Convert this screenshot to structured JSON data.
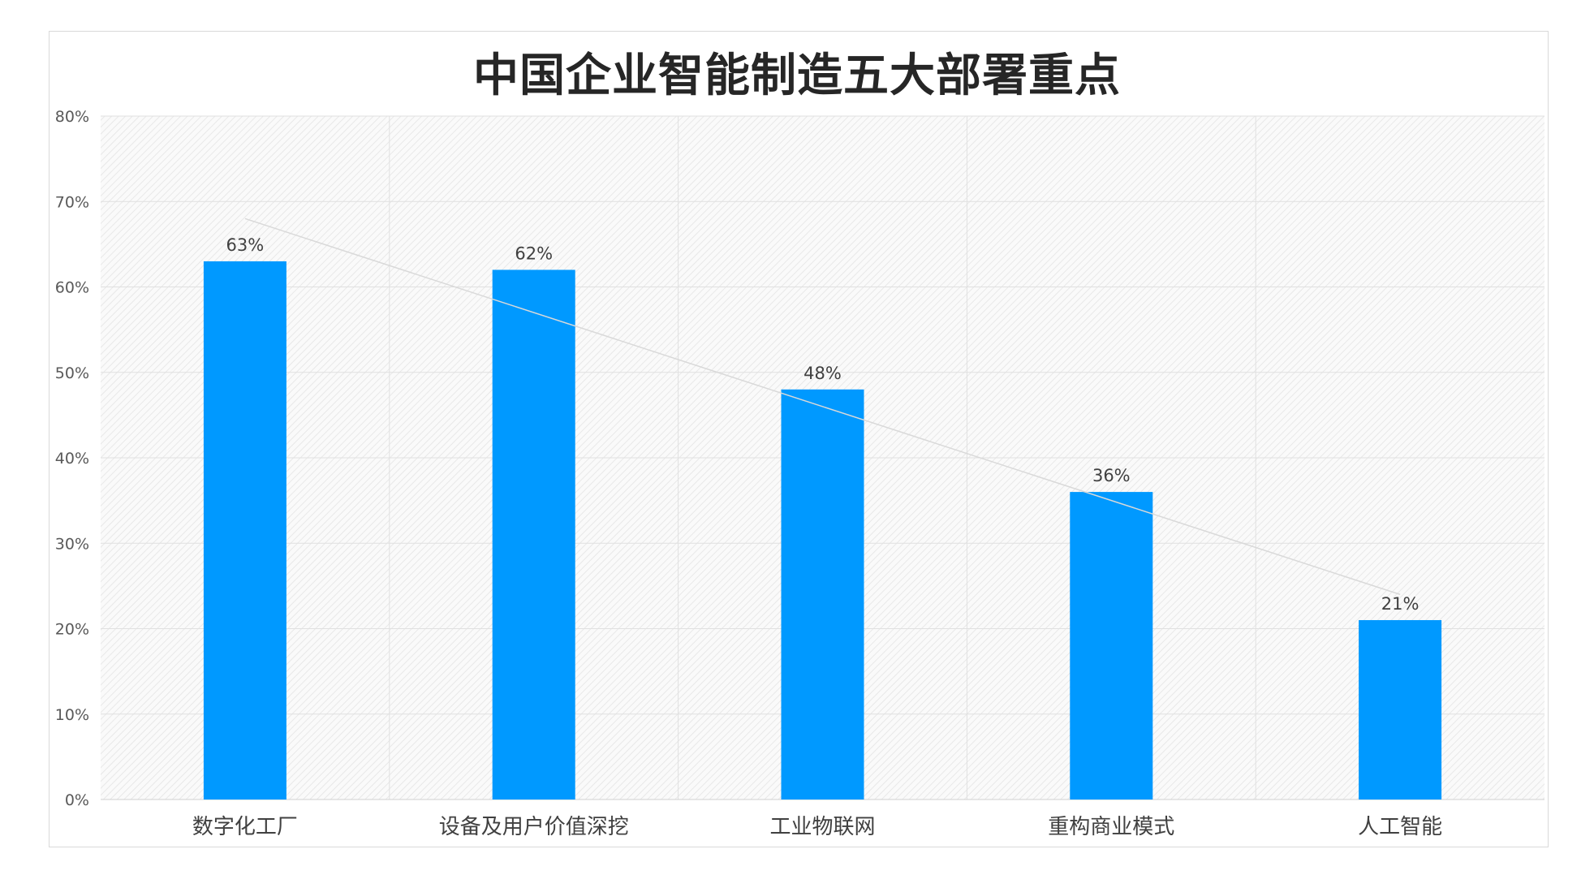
{
  "chart_data": {
    "type": "bar",
    "title": "中国企业智能制造五大部署重点",
    "categories": [
      "数字化工厂",
      "设备及用户价值深挖",
      "工业物联网",
      "重构商业模式",
      "人工智能"
    ],
    "values": [
      63,
      62,
      48,
      36,
      21
    ],
    "data_labels": [
      "63%",
      "62%",
      "48%",
      "36%",
      "21%"
    ],
    "y_ticks": [
      "0%",
      "10%",
      "20%",
      "30%",
      "40%",
      "50%",
      "60%",
      "70%",
      "80%"
    ],
    "ylim": [
      0,
      80
    ],
    "xlabel": "",
    "ylabel": "",
    "grid": true,
    "trendline": "linear",
    "legend": "none",
    "bar_color": "#0099ff",
    "trendline_color": "#d9d9d9"
  }
}
